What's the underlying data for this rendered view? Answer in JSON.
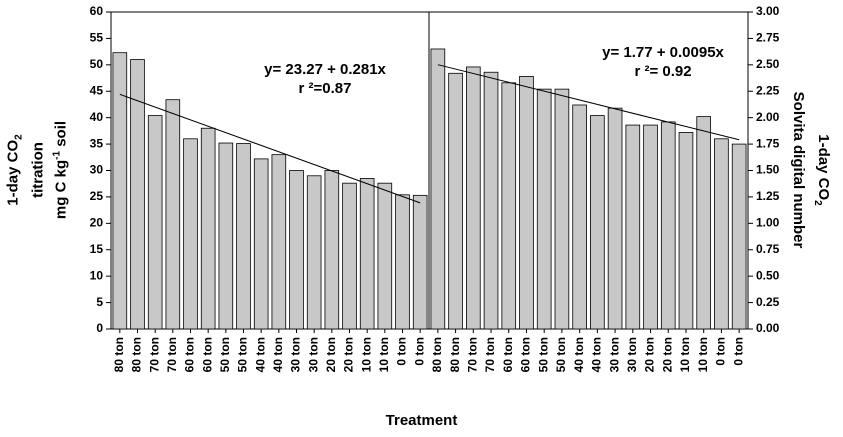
{
  "axis_titles": {
    "left": "1-day CO₂ titration mg C kg⁻¹ soil",
    "right": "1-day CO₂ Solvita digital number",
    "x": "Treatment"
  },
  "equations": {
    "left": {
      "line1": "y= 23.27 + 0.281x",
      "line2": "r ²=0.87"
    },
    "right": {
      "line1": "y= 1.77 + 0.0095x",
      "line2": "r ²= 0.92"
    }
  },
  "chart_data": [
    {
      "type": "bar",
      "categories": [
        "80 ton",
        "80 ton",
        "70 ton",
        "70 ton",
        "60 ton",
        "60 ton",
        "50 ton",
        "50 ton",
        "40 ton",
        "40 ton",
        "30 ton",
        "30 ton",
        "20 ton",
        "20 ton",
        "10 ton",
        "10 ton",
        "0 ton",
        "0 ton"
      ],
      "values": [
        52.3,
        51.0,
        40.4,
        43.4,
        36.0,
        38.0,
        35.2,
        35.1,
        32.2,
        33.0,
        30.0,
        29.0,
        30.0,
        27.6,
        28.5,
        27.6,
        25.4,
        25.3
      ],
      "ylim": [
        0,
        60
      ],
      "yticks": [
        "0",
        "5",
        "10",
        "15",
        "20",
        "25",
        "30",
        "35",
        "40",
        "45",
        "50",
        "55",
        "60"
      ],
      "y_axis_side": "left",
      "trendline": {
        "intercept": 23.27,
        "slope": 0.281
      },
      "bar_color": "#c8c8c8",
      "grid": false
    },
    {
      "type": "bar",
      "categories": [
        "80 ton",
        "80 ton",
        "70 ton",
        "70 ton",
        "60 ton",
        "60 ton",
        "50 ton",
        "50 ton",
        "40 ton",
        "40 ton",
        "30 ton",
        "30 ton",
        "20 ton",
        "20 ton",
        "10 ton",
        "10 ton",
        "0 ton",
        "0 ton"
      ],
      "values": [
        2.65,
        2.42,
        2.48,
        2.43,
        2.33,
        2.39,
        2.27,
        2.27,
        2.12,
        2.02,
        2.09,
        1.93,
        1.93,
        1.96,
        1.86,
        2.01,
        1.8,
        1.75
      ],
      "ylim": [
        0,
        3
      ],
      "yticks": [
        "0.00",
        "0.25",
        "0.50",
        "0.75",
        "1.00",
        "1.25",
        "1.50",
        "1.75",
        "2.00",
        "2.25",
        "2.50",
        "2.75",
        "3.00"
      ],
      "y_axis_side": "right",
      "trendline": {
        "intercept": 1.77,
        "slope": 0.0095
      },
      "bar_color": "#c8c8c8",
      "grid": false
    }
  ]
}
